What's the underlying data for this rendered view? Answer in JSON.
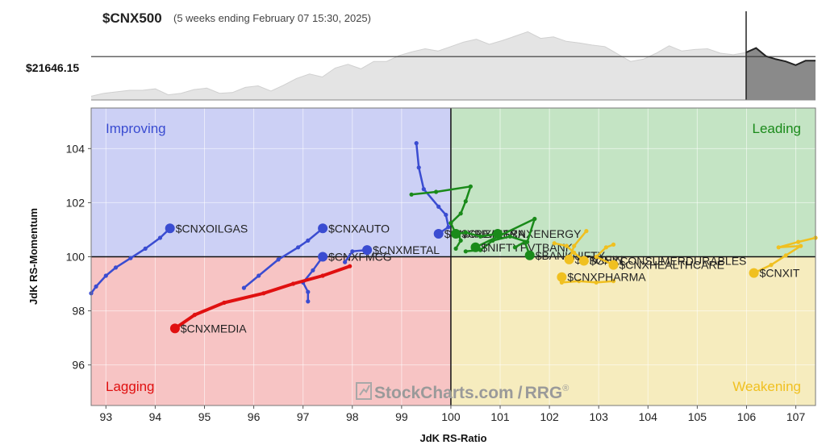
{
  "header": {
    "symbol": "$CNX500",
    "period": "(5 weeks ending February 07 15:30, 2025)",
    "price_label": "$21646.15"
  },
  "watermark": {
    "brand": "StockCharts.com",
    "slash": "/",
    "product": "RRG",
    "mark": "®"
  },
  "colors": {
    "improving_bg": "#ccd0f5",
    "leading_bg": "#c4e4c4",
    "lagging_bg": "#f7c4c4",
    "weakening_bg": "#f6ecbe",
    "improving": "#3a4cd1",
    "leading": "#1a8a1a",
    "lagging": "#e01010",
    "weakening": "#f0c020"
  },
  "chart_data": [
    {
      "type": "area",
      "title": "$CNX500",
      "subtitle": "(5 weeks ending February 07 15:30, 2025)",
      "reference_label": "$21646.15",
      "reference_value": 0.585,
      "note": "benchmark price history, relative level (0 = lowest, 1 = highest shown); final 5 weeks shaded",
      "history": [
        0.05,
        0.09,
        0.11,
        0.13,
        0.13,
        0.15,
        0.07,
        0.09,
        0.14,
        0.16,
        0.09,
        0.1,
        0.17,
        0.19,
        0.12,
        0.2,
        0.29,
        0.35,
        0.31,
        0.43,
        0.48,
        0.42,
        0.52,
        0.52,
        0.6,
        0.65,
        0.69,
        0.66,
        0.72,
        0.78,
        0.82,
        0.75,
        0.8,
        0.86,
        0.92,
        0.83,
        0.85,
        0.79,
        0.77,
        0.74,
        0.72,
        0.62,
        0.52,
        0.55,
        0.63,
        0.73,
        0.66,
        0.68,
        0.69,
        0.63,
        0.61,
        0.64
      ],
      "recent": [
        0.64,
        0.7,
        0.59,
        0.55,
        0.52,
        0.47,
        0.53,
        0.53
      ]
    },
    {
      "type": "scatter",
      "xlabel": "JdK RS-Ratio",
      "ylabel": "JdK RS-Momentum",
      "xlim": [
        92.7,
        107.4
      ],
      "ylim": [
        94.5,
        105.5
      ],
      "center": [
        100,
        100
      ],
      "x_ticks": [
        93,
        94,
        95,
        96,
        97,
        98,
        99,
        100,
        101,
        102,
        103,
        104,
        105,
        106,
        107
      ],
      "y_ticks": [
        96,
        98,
        100,
        102,
        104
      ],
      "quadrants": {
        "improving": "Improving",
        "leading": "Leading",
        "lagging": "Lagging",
        "weakening": "Weakening"
      },
      "series": [
        {
          "name": "$CNXOILGAS",
          "quadrant": "improving",
          "points": [
            [
              92.7,
              98.65
            ],
            [
              92.8,
              98.9
            ],
            [
              93.0,
              99.3
            ],
            [
              93.2,
              99.6
            ],
            [
              93.5,
              99.95
            ],
            [
              93.8,
              100.3
            ],
            [
              94.1,
              100.7
            ],
            [
              94.3,
              101.05
            ]
          ]
        },
        {
          "name": "$CNXAUTO",
          "quadrant": "improving",
          "points": [
            [
              95.8,
              98.85
            ],
            [
              96.1,
              99.3
            ],
            [
              96.5,
              99.9
            ],
            [
              96.9,
              100.35
            ],
            [
              97.1,
              100.6
            ],
            [
              97.4,
              101.05
            ]
          ]
        },
        {
          "name": "$CNXFMCG",
          "quadrant": "improving",
          "points": [
            [
              97.1,
              98.35
            ],
            [
              97.1,
              98.7
            ],
            [
              97.0,
              99.05
            ],
            [
              97.2,
              99.5
            ],
            [
              97.4,
              100.0
            ]
          ]
        },
        {
          "name": "$CNXMETAL",
          "quadrant": "improving",
          "points": [
            [
              97.85,
              99.8
            ],
            [
              98.0,
              100.2
            ],
            [
              98.3,
              100.25
            ]
          ]
        },
        {
          "name": "$CNXREALTY",
          "quadrant": "improving",
          "points": [
            [
              99.3,
              104.2
            ],
            [
              99.35,
              103.3
            ],
            [
              99.45,
              102.5
            ],
            [
              99.75,
              101.85
            ],
            [
              99.9,
              101.55
            ],
            [
              99.95,
              101.1
            ],
            [
              99.75,
              100.85
            ]
          ]
        },
        {
          "name": "$CNXINFRA",
          "quadrant": "leading",
          "points": [
            [
              99.2,
              102.3
            ],
            [
              99.7,
              102.4
            ],
            [
              100.4,
              102.6
            ],
            [
              100.3,
              102.05
            ],
            [
              100.2,
              101.6
            ],
            [
              100.0,
              101.25
            ],
            [
              100.1,
              100.85
            ]
          ]
        },
        {
          "name": "$CNXENERGY",
          "quadrant": "leading",
          "points": [
            [
              100.1,
              100.3
            ],
            [
              100.2,
              100.6
            ],
            [
              100.15,
              100.85
            ],
            [
              100.3,
              100.9
            ],
            [
              100.6,
              100.75
            ],
            [
              100.95,
              100.85
            ]
          ]
        },
        {
          "name": "$NIFTYPVTBANK",
          "quadrant": "leading",
          "points": [
            [
              100.3,
              100.2
            ],
            [
              100.6,
              100.25
            ],
            [
              100.85,
              100.6
            ],
            [
              101.2,
              100.75
            ],
            [
              101.55,
              100.55
            ],
            [
              101.7,
              101.4
            ],
            [
              100.5,
              100.35
            ]
          ]
        },
        {
          "name": "$BANKNIFTY",
          "quadrant": "leading",
          "points": [
            [
              101.3,
              100.35
            ],
            [
              101.5,
              100.55
            ],
            [
              101.6,
              100.05
            ]
          ]
        },
        {
          "name": "$CNXFIN",
          "quadrant": "weakening",
          "points": [
            [
              102.75,
              100.95
            ],
            [
              102.5,
              100.4
            ],
            [
              102.4,
              99.9
            ]
          ]
        },
        {
          "name": "$CNXCONSUMERDURABLES",
          "quadrant": "weakening",
          "points": [
            [
              102.1,
              100.5
            ],
            [
              102.35,
              100.4
            ],
            [
              102.5,
              100.15
            ],
            [
              102.7,
              99.85
            ]
          ]
        },
        {
          "name": "$CNXHEALTHCARE",
          "quadrant": "weakening",
          "points": [
            [
              103.3,
              100.45
            ],
            [
              103.15,
              100.35
            ],
            [
              102.95,
              100.0
            ],
            [
              103.3,
              99.7
            ]
          ]
        },
        {
          "name": "$CNXPHARMA",
          "quadrant": "weakening",
          "points": [
            [
              103.3,
              99.1
            ],
            [
              102.95,
              99.05
            ],
            [
              102.6,
              99.1
            ],
            [
              102.25,
              99.05
            ],
            [
              102.25,
              99.25
            ]
          ]
        },
        {
          "name": "$CNXIT",
          "quadrant": "weakening",
          "points": [
            [
              107.4,
              100.7
            ],
            [
              107.05,
              100.55
            ],
            [
              106.65,
              100.35
            ],
            [
              107.1,
              100.4
            ],
            [
              106.8,
              100.05
            ],
            [
              106.5,
              99.7
            ],
            [
              106.15,
              99.4
            ]
          ]
        },
        {
          "name": "$CNXMEDIA",
          "quadrant": "lagging",
          "points": [
            [
              97.95,
              99.65
            ],
            [
              97.4,
              99.3
            ],
            [
              96.8,
              99.0
            ],
            [
              96.2,
              98.65
            ],
            [
              95.4,
              98.3
            ],
            [
              94.8,
              97.85
            ],
            [
              94.4,
              97.35
            ]
          ]
        }
      ]
    }
  ]
}
